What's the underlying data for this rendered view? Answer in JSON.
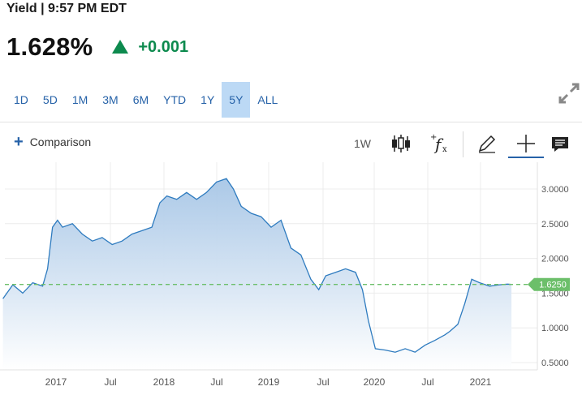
{
  "header": {
    "title": "Yield | 9:57 PM EDT"
  },
  "quote": {
    "price": "1.628%",
    "change": "+0.001",
    "up_color": "#0d8a4e"
  },
  "ranges": {
    "items": [
      "1D",
      "5D",
      "1M",
      "3M",
      "6M",
      "YTD",
      "1Y",
      "5Y",
      "ALL"
    ],
    "active": "5Y"
  },
  "toolbar": {
    "comparison_label": "Comparison",
    "interval_label": "1W",
    "icons": [
      "candlestick-icon",
      "function-icon",
      "pencil-icon",
      "crosshair-icon",
      "comment-icon"
    ]
  },
  "chart_data": {
    "type": "area",
    "x_tick_labels": [
      "2017",
      "Jul",
      "2018",
      "Jul",
      "2019",
      "Jul",
      "2020",
      "Jul",
      "2021"
    ],
    "y_tick_labels": [
      "3.0000",
      "2.5000",
      "2.0000",
      "1.5000",
      "1.0000",
      "0.5000"
    ],
    "ylim": [
      0.4,
      3.3
    ],
    "current_value_label": "1.6250",
    "current_value": 1.625,
    "line_color": "#2e7bbf",
    "fill_color": "#a7c6e6",
    "marker_color": "#6cbf6a",
    "grid": true,
    "series": [
      {
        "x": [
          2016.5,
          2016.6,
          2016.7,
          2016.8,
          2016.9,
          2016.95,
          2017.0,
          2017.05,
          2017.1,
          2017.2,
          2017.3,
          2017.4,
          2017.5,
          2017.6,
          2017.7,
          2017.8,
          2017.9,
          2018.0,
          2018.08,
          2018.15,
          2018.25,
          2018.35,
          2018.45,
          2018.55,
          2018.65,
          2018.75,
          2018.82,
          2018.9,
          2019.0,
          2019.1,
          2019.2,
          2019.3,
          2019.4,
          2019.5,
          2019.6,
          2019.68,
          2019.75,
          2019.85,
          2019.95,
          2020.05,
          2020.12,
          2020.18,
          2020.25,
          2020.35,
          2020.45,
          2020.55,
          2020.65,
          2020.75,
          2020.85,
          2020.95,
          2021.0,
          2021.08,
          2021.15,
          2021.22,
          2021.3,
          2021.4,
          2021.5,
          2021.58,
          2021.62
        ],
        "y": [
          1.42,
          1.62,
          1.5,
          1.65,
          1.6,
          1.85,
          2.45,
          2.55,
          2.45,
          2.5,
          2.35,
          2.25,
          2.3,
          2.2,
          2.25,
          2.35,
          2.4,
          2.45,
          2.8,
          2.9,
          2.85,
          2.95,
          2.85,
          2.95,
          3.1,
          3.15,
          3.0,
          2.75,
          2.65,
          2.6,
          2.45,
          2.55,
          2.15,
          2.05,
          1.7,
          1.55,
          1.75,
          1.8,
          1.85,
          1.8,
          1.55,
          1.1,
          0.7,
          0.68,
          0.65,
          0.7,
          0.65,
          0.75,
          0.82,
          0.9,
          0.95,
          1.05,
          1.35,
          1.7,
          1.65,
          1.6,
          1.62,
          1.63,
          1.625
        ]
      }
    ]
  }
}
